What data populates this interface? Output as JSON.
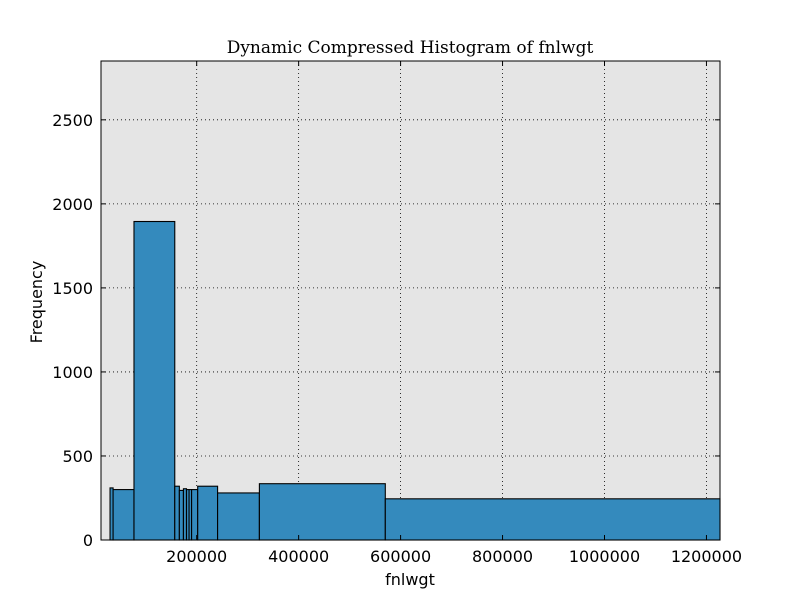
{
  "chart_data": {
    "type": "bar",
    "title": "Dynamic Compressed Histogram of fnlwgt",
    "xlabel": "fnlwgt",
    "ylabel": "Frequency",
    "xlim": [
      12285,
      1226583
    ],
    "ylim": [
      0,
      2850
    ],
    "xticks": [
      200000,
      400000,
      600000,
      800000,
      1000000,
      1200000
    ],
    "xtick_labels": [
      "200000",
      "400000",
      "600000",
      "800000",
      "1000000",
      "1200000"
    ],
    "yticks": [
      0,
      500,
      1000,
      1500,
      2000,
      2500
    ],
    "ytick_labels": [
      "0",
      "500",
      "1000",
      "1500",
      "2000",
      "2500"
    ],
    "grid": true,
    "bar_color": "#348abd",
    "background_color": "#e5e5e5",
    "bins": [
      {
        "x0": 30000,
        "x1": 36000,
        "count": 310
      },
      {
        "x0": 36000,
        "x1": 77000,
        "count": 300
      },
      {
        "x0": 77000,
        "x1": 157000,
        "count": 1895
      },
      {
        "x0": 157000,
        "x1": 166000,
        "count": 320
      },
      {
        "x0": 166000,
        "x1": 174000,
        "count": 295
      },
      {
        "x0": 174000,
        "x1": 180000,
        "count": 305
      },
      {
        "x0": 180000,
        "x1": 185000,
        "count": 300
      },
      {
        "x0": 185000,
        "x1": 190000,
        "count": 300
      },
      {
        "x0": 190000,
        "x1": 202000,
        "count": 300
      },
      {
        "x0": 202000,
        "x1": 241000,
        "count": 320
      },
      {
        "x0": 241000,
        "x1": 323000,
        "count": 280
      },
      {
        "x0": 323000,
        "x1": 570000,
        "count": 335
      },
      {
        "x0": 570000,
        "x1": 1226583,
        "count": 245
      }
    ]
  }
}
